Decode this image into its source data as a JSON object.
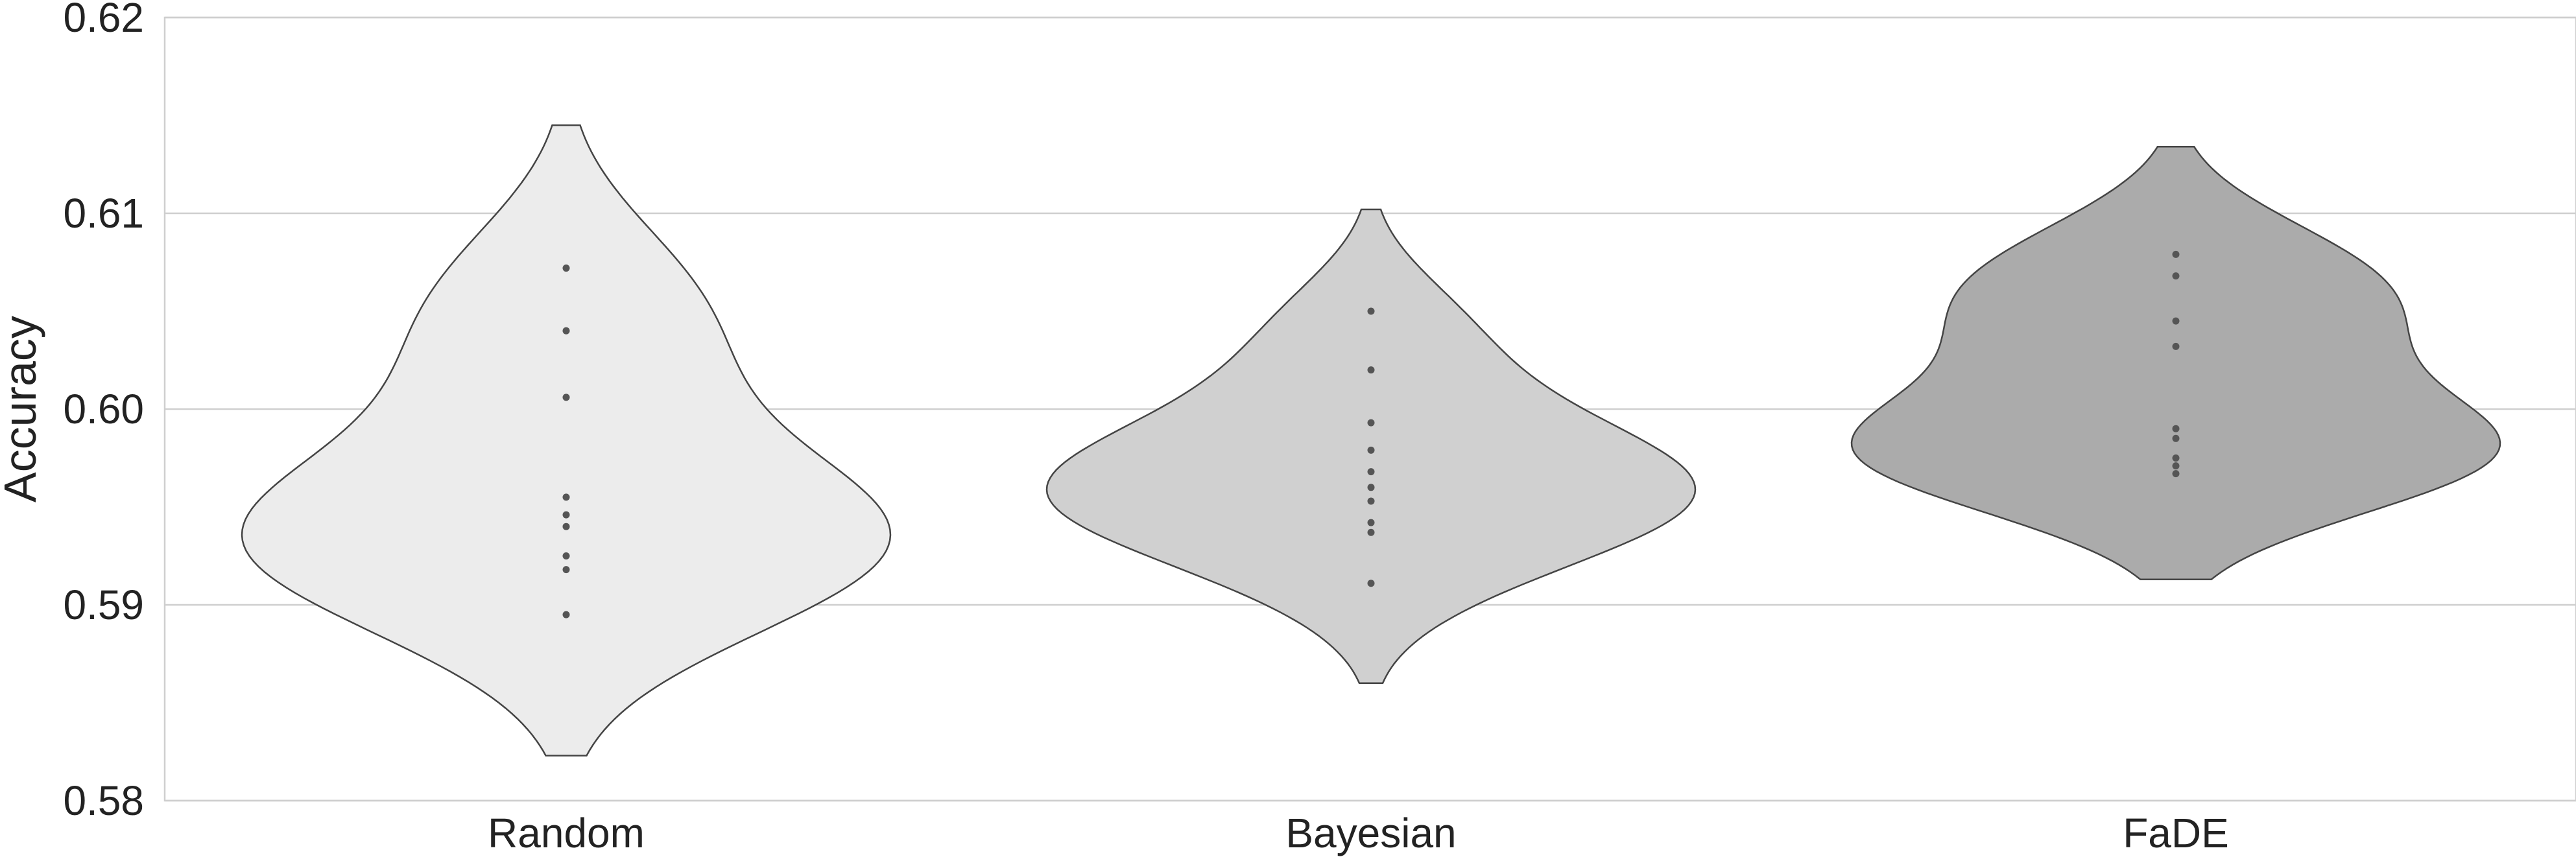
{
  "chart_data": {
    "type": "violin",
    "title": "",
    "xlabel": "",
    "ylabel": "Accuracy",
    "ylim": [
      0.58,
      0.62
    ],
    "yticks": [
      "0.58",
      "0.59",
      "0.60",
      "0.61",
      "0.62"
    ],
    "grid": "horizontal",
    "categories": [
      "Random",
      "Bayesian",
      "FaDE"
    ],
    "colors": {
      "Random": "#ececec",
      "Bayesian": "#d0d0d0",
      "FaDE": "#ababab"
    },
    "series": [
      {
        "category": "Random",
        "values": [
          0.6072,
          0.604,
          0.6006,
          0.5955,
          0.5946,
          0.594,
          0.5925,
          0.5918,
          0.5895
        ],
        "range": [
          0.5823,
          0.6145
        ]
      },
      {
        "category": "Bayesian",
        "values": [
          0.605,
          0.602,
          0.5993,
          0.5979,
          0.5968,
          0.596,
          0.5953,
          0.5942,
          0.5937,
          0.5911
        ],
        "range": [
          0.586,
          0.6102
        ]
      },
      {
        "category": "FaDE",
        "values": [
          0.6079,
          0.6068,
          0.6045,
          0.6032,
          0.599,
          0.5985,
          0.5975,
          0.5971,
          0.5967
        ],
        "range": [
          0.5913,
          0.6134
        ]
      }
    ]
  }
}
